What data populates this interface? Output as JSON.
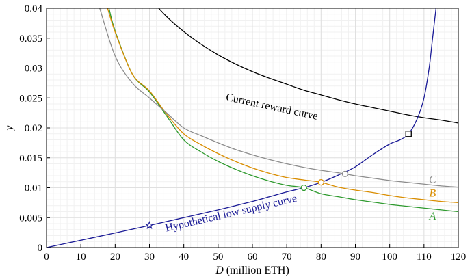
{
  "chart_data": {
    "type": "line",
    "title": "",
    "xlabel_var": "D",
    "xlabel_unit": "(million ETH)",
    "ylabel": "y",
    "xlim": [
      0,
      120
    ],
    "ylim": [
      0,
      0.04
    ],
    "x_ticks": [
      0,
      10,
      20,
      30,
      40,
      50,
      60,
      70,
      80,
      90,
      100,
      110,
      120
    ],
    "x_tick_labels": [
      "0",
      "10",
      "20",
      "30",
      "40",
      "50",
      "60",
      "70",
      "80",
      "90",
      "100",
      "110",
      "120"
    ],
    "y_ticks": [
      0,
      0.005,
      0.01,
      0.015,
      0.02,
      0.025,
      0.03,
      0.035,
      0.04
    ],
    "y_tick_labels": [
      "0",
      "0.005",
      "0.01",
      "0.015",
      "0.02",
      "0.025",
      "0.03",
      "0.035",
      "0.04"
    ],
    "grid": true,
    "series": [
      {
        "name": "Current reward curve",
        "color": "#000000",
        "x": [
          30,
          35,
          40,
          45,
          50,
          55,
          60,
          65,
          70,
          75,
          80,
          85,
          90,
          95,
          100,
          105,
          110,
          115,
          120
        ],
        "y": [
          0.0417,
          0.0386,
          0.0361,
          0.034,
          0.0322,
          0.0307,
          0.0294,
          0.0283,
          0.0273,
          0.0263,
          0.0255,
          0.0247,
          0.024,
          0.0234,
          0.0228,
          0.0222,
          0.0217,
          0.0213,
          0.0208
        ]
      },
      {
        "name": "Hypothetical low supply curve",
        "color": "#1a1a96",
        "x": [
          0,
          10,
          20,
          30,
          40,
          50,
          60,
          65,
          70,
          75,
          80,
          85,
          90,
          95,
          100,
          103,
          105.5,
          108,
          110,
          111.5,
          112.5,
          113.5
        ],
        "y": [
          0,
          0.00122,
          0.00244,
          0.0037,
          0.005,
          0.0063,
          0.0077,
          0.0085,
          0.0093,
          0.01,
          0.0109,
          0.0121,
          0.0135,
          0.0155,
          0.0173,
          0.018,
          0.019,
          0.0215,
          0.025,
          0.03,
          0.035,
          0.04
        ]
      },
      {
        "name": "A",
        "color": "#2e9a2e",
        "x": [
          18.2,
          20,
          25,
          30,
          35,
          40,
          45,
          50,
          55,
          60,
          65,
          70,
          75,
          80,
          85,
          90,
          95,
          100,
          105,
          110,
          115,
          120
        ],
        "y": [
          0.04,
          0.0362,
          0.029,
          0.026,
          0.022,
          0.018,
          0.016,
          0.0144,
          0.0131,
          0.012,
          0.0111,
          0.0104,
          0.01,
          0.009,
          0.0085,
          0.008,
          0.0076,
          0.0072,
          0.0069,
          0.0066,
          0.0063,
          0.006
        ]
      },
      {
        "name": "B",
        "color": "#d98d00",
        "x": [
          17.8,
          20,
          25,
          30,
          35,
          40,
          45,
          50,
          55,
          60,
          65,
          70,
          75,
          80,
          85,
          90,
          95,
          100,
          105,
          110,
          115,
          120
        ],
        "y": [
          0.04,
          0.036,
          0.029,
          0.0262,
          0.0223,
          0.019,
          0.0172,
          0.0157,
          0.0144,
          0.0133,
          0.0124,
          0.0117,
          0.0113,
          0.0109,
          0.0101,
          0.0096,
          0.0092,
          0.0087,
          0.0083,
          0.008,
          0.0077,
          0.0075
        ]
      },
      {
        "name": "C",
        "color": "#8c8c8c",
        "x": [
          15.5,
          20,
          25,
          30,
          35,
          40,
          45,
          50,
          55,
          60,
          65,
          70,
          75,
          80,
          85,
          87,
          90,
          95,
          100,
          105,
          110,
          115,
          120
        ],
        "y": [
          0.04,
          0.032,
          0.0275,
          0.025,
          0.0225,
          0.02,
          0.0187,
          0.0175,
          0.0164,
          0.0155,
          0.0147,
          0.014,
          0.0134,
          0.0129,
          0.0125,
          0.0123,
          0.012,
          0.0116,
          0.0112,
          0.0109,
          0.0106,
          0.0103,
          0.0101
        ]
      }
    ],
    "markers": [
      {
        "name": "star",
        "shape": "star",
        "x": 30,
        "y": 0.0037,
        "color": "#1a1a96"
      },
      {
        "name": "intersection-A",
        "shape": "circle",
        "x": 75,
        "y": 0.01,
        "color": "#2e9a2e"
      },
      {
        "name": "intersection-B",
        "shape": "circle",
        "x": 80,
        "y": 0.0109,
        "color": "#d98d00"
      },
      {
        "name": "intersection-C",
        "shape": "circle",
        "x": 87,
        "y": 0.0123,
        "color": "#8c8c8c"
      },
      {
        "name": "intersection-current",
        "shape": "square",
        "x": 105.5,
        "y": 0.019,
        "color": "#000000"
      }
    ],
    "annotations": [
      {
        "name": "current-curve-label",
        "text": "Current reward curve",
        "x": 65.5,
        "y": 0.023,
        "angle": 12,
        "color": "#000000",
        "italic": false
      },
      {
        "name": "low-supply-label",
        "text": "Hypothetical low supply curve",
        "x": 54,
        "y": 0.0052,
        "angle": -13,
        "color": "#1a1a96",
        "italic": false
      },
      {
        "name": "label-C",
        "text": "C",
        "x": 112.5,
        "y": 0.0108,
        "angle": 0,
        "color": "#8c8c8c",
        "italic": true
      },
      {
        "name": "label-B",
        "text": "B",
        "x": 112.5,
        "y": 0.0085,
        "angle": 0,
        "color": "#d98d00",
        "italic": true
      },
      {
        "name": "label-A",
        "text": "A",
        "x": 112.5,
        "y": 0.0047,
        "angle": 0,
        "color": "#2e9a2e",
        "italic": true
      }
    ]
  }
}
